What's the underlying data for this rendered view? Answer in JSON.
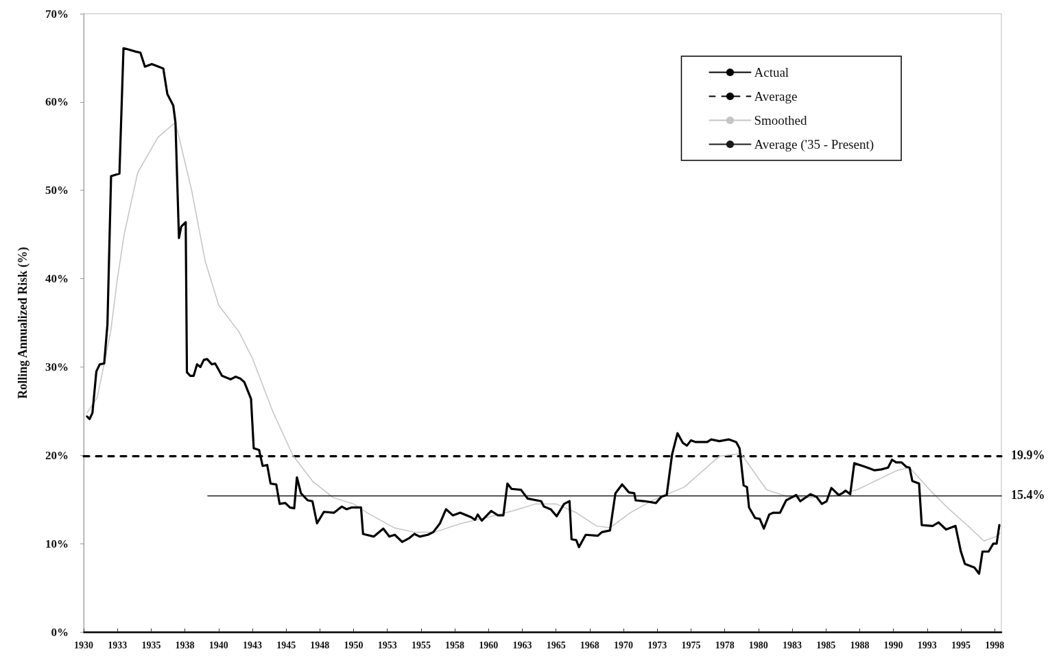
{
  "chart_data": {
    "type": "line",
    "ylabel": "Rolling Annualized Risk (%)",
    "xlim": [
      1930,
      1998
    ],
    "ylim": [
      0,
      70
    ],
    "xticks": [
      1930,
      {
        "value": 1932.5,
        "label": "1933"
      },
      1935,
      {
        "value": 1937.5,
        "label": "1938"
      },
      1940,
      {
        "value": 1942.5,
        "label": "1943"
      },
      1945,
      {
        "value": 1947.5,
        "label": "1948"
      },
      1950,
      {
        "value": 1952.5,
        "label": "1953"
      },
      1955,
      {
        "value": 1957.5,
        "label": "1958"
      },
      1960,
      {
        "value": 1962.5,
        "label": "1963"
      },
      1965,
      {
        "value": 1967.5,
        "label": "1968"
      },
      1970,
      {
        "value": 1972.5,
        "label": "1973"
      },
      1975,
      {
        "value": 1977.5,
        "label": "1978"
      },
      1980,
      {
        "value": 1982.5,
        "label": "1983"
      },
      1985,
      {
        "value": 1987.5,
        "label": "1988"
      },
      1990,
      {
        "value": 1992.5,
        "label": "1993"
      },
      1995,
      {
        "value": 1997.5,
        "label": "1998"
      }
    ],
    "yticks": [
      {
        "value": 0,
        "label": "0%"
      },
      {
        "value": 10,
        "label": "10%"
      },
      {
        "value": 20,
        "label": "20%"
      },
      {
        "value": 30,
        "label": "30%"
      },
      {
        "value": 40,
        "label": "40%"
      },
      {
        "value": 50,
        "label": "50%"
      },
      {
        "value": 60,
        "label": "60%"
      },
      {
        "value": 70,
        "label": "70%"
      }
    ],
    "legend": "top right",
    "marker": "none",
    "annotations": [
      {
        "text": "19.9%",
        "x": 1998,
        "y": 19.9
      },
      {
        "text": "15.4%",
        "x": 1998,
        "y": 15.4
      }
    ],
    "series": [
      {
        "name": "Actual",
        "color": "#000000",
        "line_style": "solid",
        "x": [
          1930.25,
          1930.44,
          1930.65,
          1930.94,
          1931.19,
          1931.52,
          1931.76,
          1932.03,
          1932.65,
          1932.95,
          1933.2,
          1933.87,
          1934.2,
          1934.54,
          1935.05,
          1935.55,
          1935.9,
          1936.2,
          1936.64,
          1936.8,
          1937.06,
          1937.23,
          1937.56,
          1937.65,
          1937.9,
          1938.15,
          1938.4,
          1938.65,
          1938.9,
          1939.15,
          1939.5,
          1939.74,
          1940.25,
          1940.9,
          1941.25,
          1941.6,
          1941.9,
          1942.4,
          1942.6,
          1943.0,
          1943.26,
          1943.6,
          1943.85,
          1944.27,
          1944.52,
          1944.94,
          1945.28,
          1945.6,
          1945.8,
          1946.1,
          1946.6,
          1946.95,
          1947.29,
          1947.8,
          1948.55,
          1949.13,
          1949.47,
          1949.88,
          1950.55,
          1950.7,
          1951.5,
          1952.2,
          1952.65,
          1953.05,
          1953.6,
          1954.1,
          1954.5,
          1954.9,
          1955.5,
          1955.9,
          1956.2,
          1956.4,
          1956.85,
          1957.35,
          1957.9,
          1958.7,
          1959.0,
          1959.2,
          1959.5,
          1960.2,
          1960.7,
          1961.1,
          1961.4,
          1961.7,
          1962.4,
          1962.9,
          1963.9,
          1964.1,
          1964.6,
          1965.05,
          1965.6,
          1966.0,
          1966.15,
          1966.5,
          1966.7,
          1967.2,
          1968.1,
          1968.4,
          1969.0,
          1969.4,
          1969.9,
          1970.4,
          1970.8,
          1970.9,
          1971.6,
          1972.4,
          1972.8,
          1973.2,
          1973.6,
          1974.0,
          1974.4,
          1974.7,
          1975.0,
          1975.35,
          1976.2,
          1976.5,
          1977.1,
          1977.8,
          1978.35,
          1978.6,
          1978.9,
          1979.15,
          1979.3,
          1979.75,
          1980.1,
          1980.4,
          1980.8,
          1981.1,
          1981.6,
          1982.05,
          1982.3,
          1982.8,
          1983.1,
          1983.85,
          1984.3,
          1984.7,
          1985.05,
          1985.4,
          1985.95,
          1986.2,
          1986.45,
          1986.8,
          1987.1,
          1987.9,
          1988.6,
          1989.1,
          1989.6,
          1989.9,
          1990.2,
          1990.6,
          1990.95,
          1991.2,
          1991.4,
          1991.9,
          1992.1,
          1992.9,
          1993.35,
          1993.9,
          1994.6,
          1995.0,
          1995.3,
          1996.0,
          1996.35,
          1996.6,
          1997.05,
          1997.4,
          1997.65,
          1997.85
        ],
        "values": [
          24.4,
          24.1,
          24.8,
          29.5,
          30.3,
          30.4,
          34.8,
          51.6,
          51.9,
          66.1,
          66.0,
          65.7,
          65.6,
          64.0,
          64.3,
          64.0,
          63.8,
          60.9,
          59.6,
          57.7,
          44.6,
          45.9,
          46.4,
          29.4,
          29.0,
          29.0,
          30.3,
          30.0,
          30.8,
          30.9,
          30.3,
          30.4,
          29.0,
          28.6,
          28.9,
          28.7,
          28.3,
          26.4,
          20.8,
          20.6,
          18.8,
          18.9,
          16.8,
          16.7,
          14.5,
          14.6,
          14.1,
          14.0,
          17.5,
          15.7,
          14.9,
          14.8,
          12.3,
          13.6,
          13.5,
          14.2,
          13.9,
          14.1,
          14.1,
          11.1,
          10.8,
          11.7,
          10.8,
          11.0,
          10.2,
          10.6,
          11.1,
          10.8,
          11.0,
          11.3,
          11.9,
          12.3,
          13.9,
          13.2,
          13.5,
          13.0,
          12.7,
          13.3,
          12.6,
          13.7,
          13.2,
          13.2,
          16.8,
          16.2,
          16.1,
          15.1,
          14.8,
          14.2,
          13.9,
          13.1,
          14.5,
          14.8,
          10.5,
          10.4,
          9.6,
          11.0,
          10.9,
          11.3,
          11.5,
          15.7,
          16.7,
          15.8,
          15.7,
          14.9,
          14.8,
          14.6,
          15.3,
          15.5,
          20.1,
          22.5,
          21.4,
          21.1,
          21.7,
          21.5,
          21.5,
          21.8,
          21.6,
          21.8,
          21.5,
          20.8,
          16.6,
          16.4,
          14.1,
          12.9,
          12.8,
          11.7,
          13.3,
          13.5,
          13.5,
          14.9,
          15.1,
          15.5,
          14.8,
          15.6,
          15.3,
          14.5,
          14.8,
          16.3,
          15.5,
          15.7,
          16.0,
          15.6,
          19.1,
          18.7,
          18.3,
          18.4,
          18.6,
          19.5,
          19.2,
          19.2,
          18.7,
          18.6,
          17.1,
          16.8,
          12.1,
          12.0,
          12.4,
          11.6,
          12.0,
          9.1,
          7.7,
          7.3,
          6.6,
          9.1,
          9.1,
          10.0,
          10.0,
          12.1
        ]
      },
      {
        "name": "Average",
        "color": "#000000",
        "line_style": "dashed",
        "x": [
          1930,
          1998
        ],
        "values": [
          19.9,
          19.9
        ]
      },
      {
        "name": "Smoothed",
        "color": "#c4c4c4",
        "line_style": "solid",
        "x": [
          1930.25,
          1931,
          1932,
          1932.5,
          1933,
          1934,
          1935.5,
          1936.8,
          1938,
          1939,
          1940,
          1941.5,
          1942.5,
          1944,
          1945.5,
          1947,
          1948.5,
          1950,
          1951,
          1953,
          1954.5,
          1956,
          1958,
          1960,
          1962,
          1963.5,
          1965,
          1966.5,
          1968,
          1969,
          1970.5,
          1972,
          1974.5,
          1977.1,
          1978.7,
          1980.6,
          1982.2,
          1984,
          1985.5,
          1987.3,
          1990.3,
          1991.2,
          1992.8,
          1994.2,
          1995.6,
          1996.7,
          1997.6,
          1997.9
        ],
        "values": [
          24.8,
          26.5,
          34,
          40,
          45,
          52,
          56,
          57.7,
          50,
          42,
          37,
          34,
          31,
          25,
          20,
          17,
          15.2,
          14.5,
          13.5,
          11.8,
          11.3,
          11.3,
          12.3,
          13,
          13.8,
          14.5,
          14.5,
          13.5,
          12,
          11.8,
          13.5,
          14.8,
          16.4,
          19.9,
          20.2,
          16.1,
          15.3,
          15.2,
          15.4,
          16.1,
          18.3,
          18.6,
          15.9,
          13.8,
          11.9,
          10.3,
          10.8,
          11.2
        ]
      },
      {
        "name": "Average ('35 - Present)",
        "color": "#1a1a1a",
        "line_style": "solid",
        "x": [
          1939.2,
          1998
        ],
        "values": [
          15.4,
          15.4
        ]
      }
    ]
  }
}
